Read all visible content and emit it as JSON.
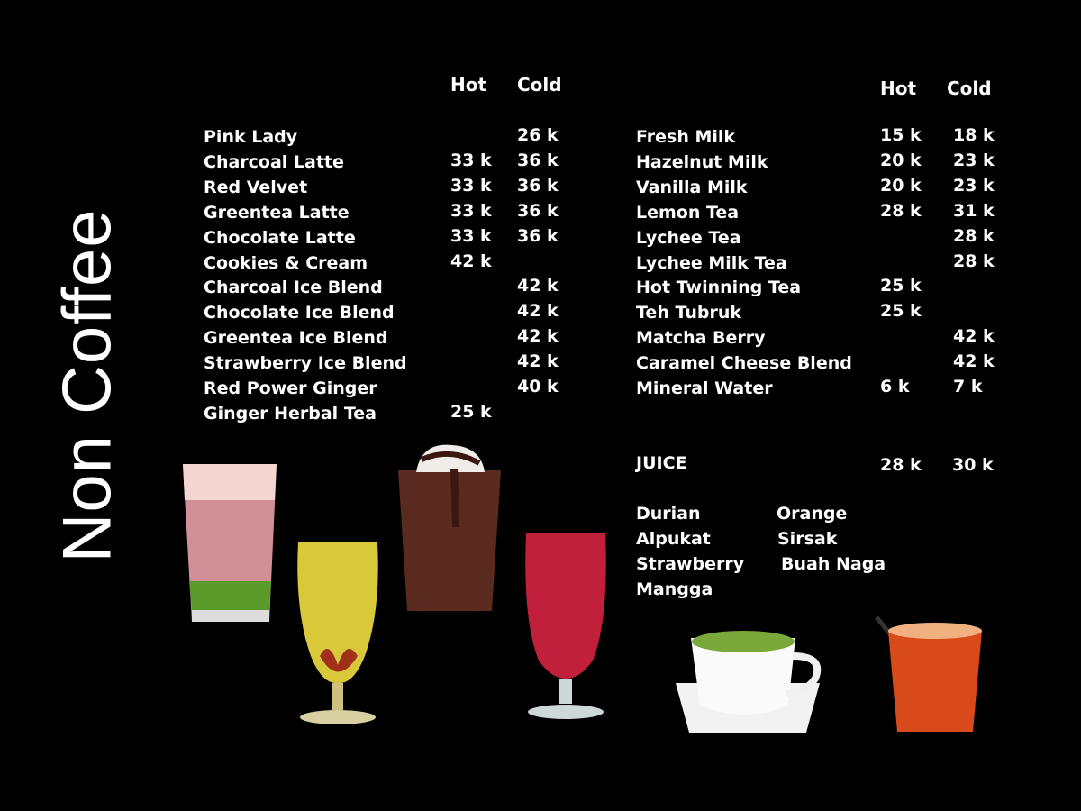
{
  "title": "Non Coffee",
  "left_menu": {
    "headers": {
      "hot": "Hot",
      "cold": "Cold"
    },
    "items": [
      {
        "name": "Pink Lady",
        "hot": "",
        "cold": "26 k"
      },
      {
        "name": "Charcoal  Latte",
        "hot": "33 k",
        "cold": "36 k"
      },
      {
        "name": "Red Velvet",
        "hot": "33 k",
        "cold": "36 k"
      },
      {
        "name": "Greentea Latte",
        "hot": "33 k",
        "cold": "36 k"
      },
      {
        "name": "Chocolate Latte",
        "hot": "33 k",
        "cold": "36 k"
      },
      {
        "name": "Cookies & Cream",
        "hot": "42 k",
        "cold": ""
      },
      {
        "name": "Charcoal Ice Blend",
        "hot": "",
        "cold": "42 k"
      },
      {
        "name": "Chocolate Ice Blend",
        "hot": "",
        "cold": "42 k"
      },
      {
        "name": "Greentea Ice Blend",
        "hot": "",
        "cold": "42 k"
      },
      {
        "name": "Strawberry Ice Blend",
        "hot": "",
        "cold": "42 k"
      },
      {
        "name": "Red Power Ginger",
        "hot": "",
        "cold": "40 k"
      },
      {
        "name": "Ginger Herbal Tea",
        "hot": "25 k",
        "cold": ""
      }
    ]
  },
  "right_menu": {
    "headers": {
      "hot": "Hot",
      "cold": "Cold"
    },
    "items": [
      {
        "name": "Fresh Milk",
        "hot": "15 k",
        "cold": "18 k"
      },
      {
        "name": "Hazelnut Milk",
        "hot": "20 k",
        "cold": "23 k"
      },
      {
        "name": "Vanilla Milk",
        "hot": "20 k",
        "cold": "23 k"
      },
      {
        "name": "Lemon Tea",
        "hot": "28 k",
        "cold": "31 k"
      },
      {
        "name": "Lychee  Tea",
        "hot": "",
        "cold": "28 k"
      },
      {
        "name": "Lychee Milk Tea",
        "hot": "",
        "cold": "28 k"
      },
      {
        "name": "Hot Twinning Tea",
        "hot": "25 k",
        "cold": ""
      },
      {
        "name": "Teh Tubruk",
        "hot": "25 k",
        "cold": ""
      },
      {
        "name": "Matcha Berry",
        "hot": "",
        "cold": "42 k"
      },
      {
        "name": "Caramel Cheese Blend",
        "hot": "",
        "cold": "42 k"
      },
      {
        "name": "Mineral Water",
        "hot": "6 k",
        "cold": "7 k"
      }
    ]
  },
  "juice": {
    "label": "JUICE",
    "hot": "28 k",
    "cold": "30 k",
    "flavors": [
      "Durian",
      "Orange",
      "Alpukat",
      "Sirsak",
      "Strawberry",
      "Buah Naga",
      "Mangga"
    ]
  },
  "colors": {
    "background": "#000000",
    "text": "#ffffff"
  }
}
